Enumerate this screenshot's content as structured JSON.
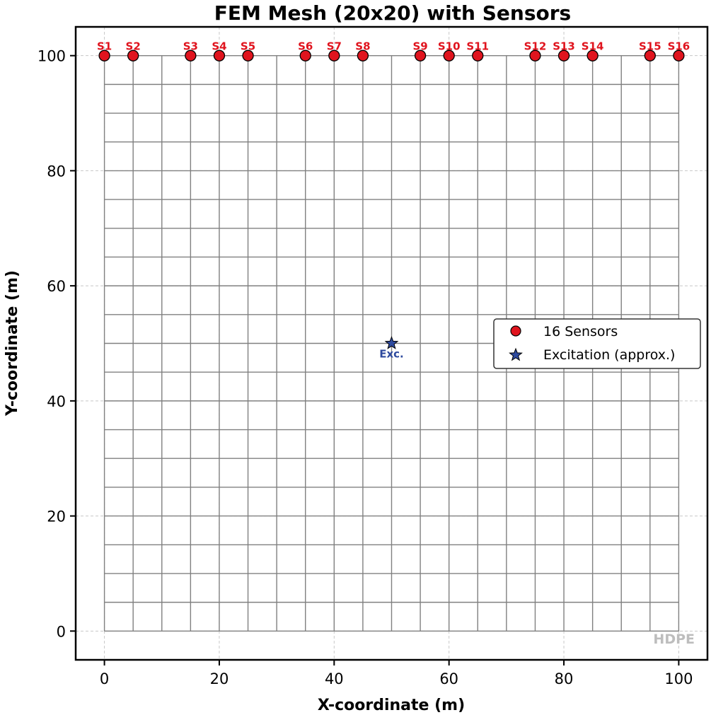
{
  "chart_data": {
    "type": "scatter",
    "title": "FEM Mesh (20x20) with Sensors",
    "xlabel": "X-coordinate (m)",
    "ylabel": "Y-coordinate (m)",
    "xlim": [
      -5,
      105
    ],
    "ylim": [
      -5,
      105
    ],
    "xticks": [
      0,
      20,
      40,
      60,
      80,
      100
    ],
    "yticks": [
      0,
      20,
      40,
      60,
      80,
      100
    ],
    "grid": true,
    "legend_position": "center-right",
    "watermark": "HDPE",
    "mesh": {
      "x_lines": [
        0,
        5,
        10,
        15,
        20,
        25,
        30,
        35,
        40,
        45,
        50,
        55,
        60,
        65,
        70,
        75,
        80,
        85,
        90,
        95,
        100
      ],
      "y_lines": [
        0,
        5,
        10,
        15,
        20,
        25,
        30,
        35,
        40,
        45,
        50,
        55,
        60,
        65,
        70,
        75,
        80,
        85,
        90,
        95,
        100
      ],
      "color": "#808080"
    },
    "series": [
      {
        "name": "16 Sensors",
        "color": "#e0141e",
        "points": [
          {
            "label": "S1",
            "x": 0,
            "y": 100
          },
          {
            "label": "S2",
            "x": 5,
            "y": 100
          },
          {
            "label": "S3",
            "x": 15,
            "y": 100
          },
          {
            "label": "S4",
            "x": 20,
            "y": 100
          },
          {
            "label": "S5",
            "x": 25,
            "y": 100
          },
          {
            "label": "S6",
            "x": 35,
            "y": 100
          },
          {
            "label": "S7",
            "x": 40,
            "y": 100
          },
          {
            "label": "S8",
            "x": 45,
            "y": 100
          },
          {
            "label": "S9",
            "x": 55,
            "y": 100
          },
          {
            "label": "S10",
            "x": 60,
            "y": 100
          },
          {
            "label": "S11",
            "x": 65,
            "y": 100
          },
          {
            "label": "S12",
            "x": 75,
            "y": 100
          },
          {
            "label": "S13",
            "x": 80,
            "y": 100
          },
          {
            "label": "S14",
            "x": 85,
            "y": 100
          },
          {
            "label": "S15",
            "x": 95,
            "y": 100
          },
          {
            "label": "S16",
            "x": 100,
            "y": 100
          }
        ]
      },
      {
        "name": "Excitation (approx.)",
        "color": "#2e4a9e",
        "points": [
          {
            "label": "Exc.",
            "x": 50,
            "y": 50
          }
        ]
      }
    ]
  }
}
